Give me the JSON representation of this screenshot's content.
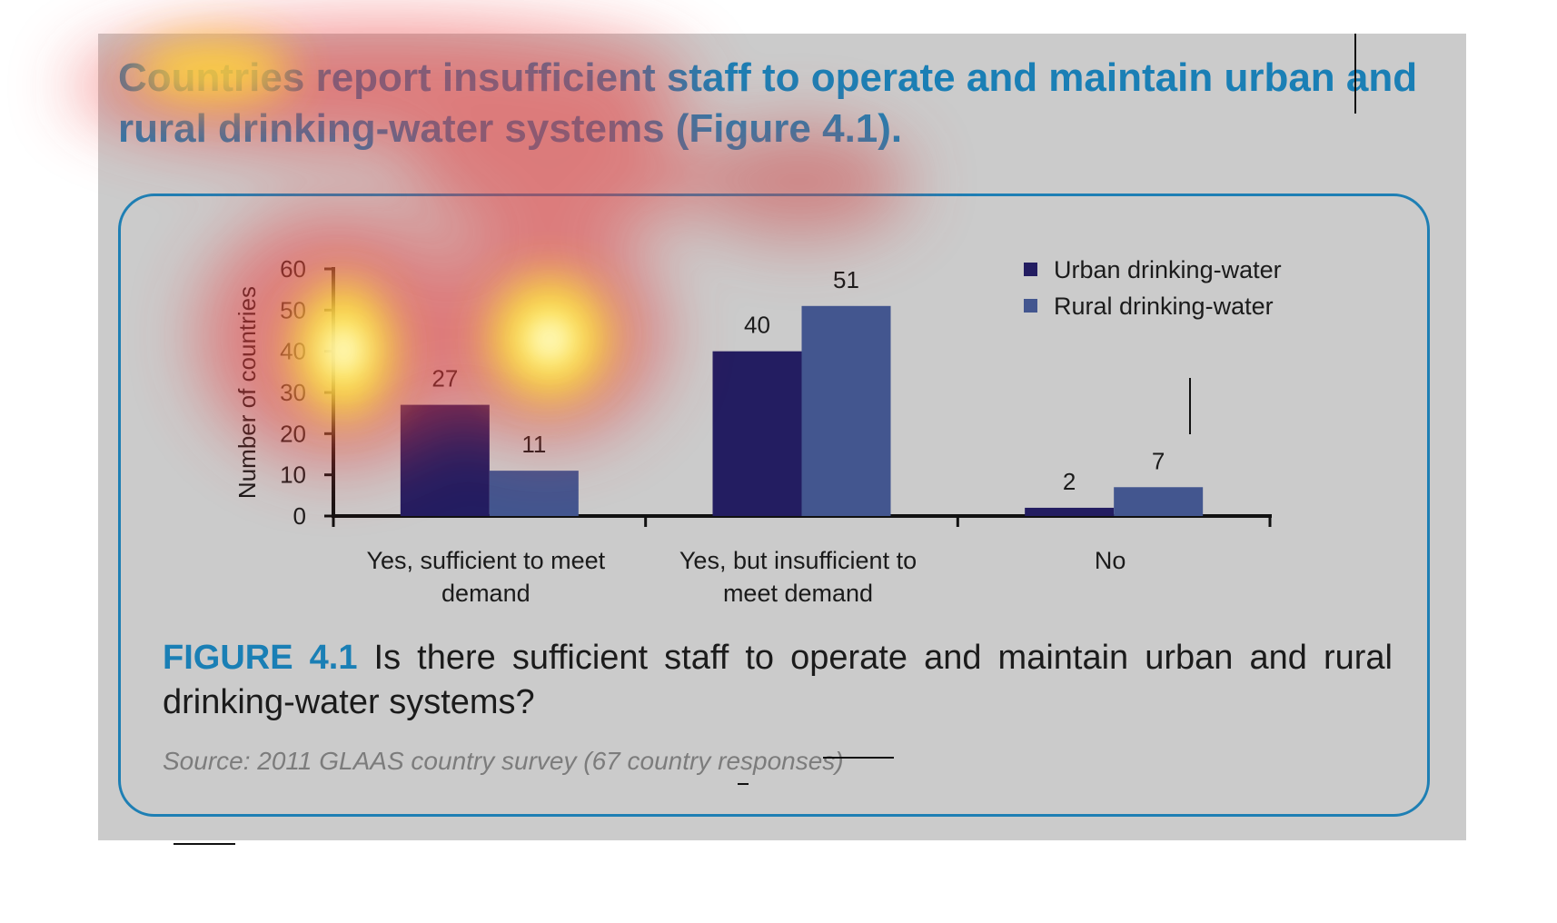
{
  "heading": "Countries report insufficient staff to operate and maintain urban and rural drinking-water systems (Figure 4.1).",
  "caption": {
    "label": "FIGURE 4.1",
    "text": " Is there sufficient staff to operate and maintain urban and rural drinking-water systems?"
  },
  "source": "Source: 2011 GLAAS country survey (67 country responses)",
  "colors": {
    "accent": "#1a7fb5",
    "urban": "#231d61",
    "rural": "#43568f",
    "panel": "#cbcbcb"
  },
  "chart_data": {
    "type": "bar",
    "categories": [
      [
        "Yes, sufficient to meet",
        "demand"
      ],
      [
        "Yes, but insufficient to",
        "meet demand"
      ],
      [
        "No"
      ]
    ],
    "series": [
      {
        "name": "Urban drinking-water",
        "values": [
          27,
          40,
          2
        ]
      },
      {
        "name": "Rural drinking-water",
        "values": [
          11,
          51,
          7
        ]
      }
    ],
    "xlabel": "",
    "ylabel": "Number of countries",
    "ylim": [
      0,
      60
    ],
    "yticks": [
      0,
      10,
      20,
      30,
      40,
      50,
      60
    ],
    "grid": false,
    "legend_position": "top-right",
    "data_labels": true
  },
  "overlay": {
    "type": "attention-heatmap",
    "hotspots": [
      {
        "label": "y-axis tick labels",
        "intensity": 1.0
      },
      {
        "label": "urban bar, first category",
        "intensity": 0.9
      },
      {
        "label": "chart title area",
        "intensity": 0.75
      },
      {
        "label": "heading text",
        "intensity": 0.6
      }
    ]
  }
}
